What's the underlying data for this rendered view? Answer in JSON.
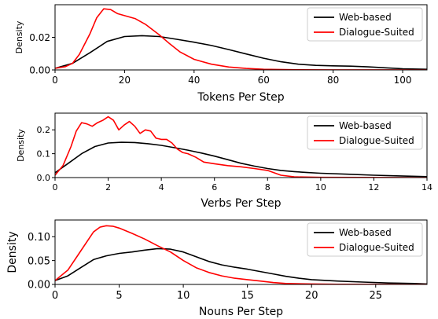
{
  "chart_data": [
    {
      "type": "line",
      "xlabel": "Tokens Per Step",
      "ylabel": "Density",
      "xlim": [
        0,
        107
      ],
      "ylim": [
        0,
        0.04
      ],
      "xticks": [
        0,
        20,
        40,
        60,
        80,
        100
      ],
      "yticks": [
        0,
        0.02
      ],
      "ytick_labels": [
        "0.00",
        "0.02"
      ],
      "legend_position": "top-right",
      "series": [
        {
          "name": "Web-based",
          "color": "#000000",
          "x": [
            0,
            5,
            10,
            15,
            20,
            25,
            30,
            35,
            40,
            45,
            50,
            55,
            60,
            65,
            70,
            75,
            80,
            85,
            90,
            95,
            100,
            107
          ],
          "y": [
            0.001,
            0.004,
            0.0105,
            0.0175,
            0.0205,
            0.021,
            0.0205,
            0.0188,
            0.017,
            0.015,
            0.0125,
            0.0098,
            0.0072,
            0.005,
            0.0035,
            0.0028,
            0.0025,
            0.0023,
            0.0019,
            0.0013,
            0.0007,
            0.0004
          ]
        },
        {
          "name": "Dialogue-Suited",
          "color": "#ff0000",
          "x": [
            0,
            3,
            5,
            7,
            10,
            12,
            14,
            16,
            18,
            20,
            23,
            26,
            30,
            33,
            36,
            40,
            45,
            50,
            55,
            60,
            70,
            80,
            107
          ],
          "y": [
            0.001,
            0.002,
            0.004,
            0.0095,
            0.022,
            0.032,
            0.0375,
            0.037,
            0.0345,
            0.0333,
            0.0315,
            0.028,
            0.0215,
            0.016,
            0.011,
            0.0065,
            0.0035,
            0.0018,
            0.0009,
            0.0004,
            0.0001,
            5e-05,
            0
          ]
        }
      ]
    },
    {
      "type": "line",
      "xlabel": "Verbs Per Step",
      "ylabel": "Density",
      "xlim": [
        0,
        14
      ],
      "ylim": [
        0,
        0.27
      ],
      "xticks": [
        0,
        2,
        4,
        6,
        8,
        10,
        12,
        14
      ],
      "yticks": [
        0,
        0.1,
        0.2
      ],
      "ytick_labels": [
        "0.0",
        "0.1",
        "0.2"
      ],
      "legend_position": "top-right",
      "series": [
        {
          "name": "Web-based",
          "color": "#000000",
          "x": [
            0,
            0.5,
            1,
            1.5,
            2,
            2.5,
            3,
            3.5,
            4,
            4.5,
            5,
            5.5,
            6,
            6.5,
            7,
            7.5,
            8,
            8.5,
            9,
            9.5,
            10,
            11,
            12,
            13,
            14
          ],
          "y": [
            0.02,
            0.06,
            0.1,
            0.13,
            0.145,
            0.148,
            0.147,
            0.142,
            0.135,
            0.125,
            0.115,
            0.103,
            0.09,
            0.075,
            0.06,
            0.048,
            0.038,
            0.03,
            0.025,
            0.021,
            0.018,
            0.014,
            0.01,
            0.007,
            0.004
          ]
        },
        {
          "name": "Dialogue-Suited",
          "color": "#ff0000",
          "x": [
            0,
            0.3,
            0.6,
            0.8,
            1.0,
            1.2,
            1.4,
            1.6,
            1.8,
            2.0,
            2.2,
            2.4,
            2.6,
            2.8,
            3.0,
            3.2,
            3.4,
            3.6,
            3.8,
            4.0,
            4.2,
            4.4,
            4.6,
            4.8,
            5.0,
            5.3,
            5.6,
            6.0,
            6.5,
            7.0,
            7.5,
            8.0,
            8.5,
            9.0,
            10,
            14
          ],
          "y": [
            0.01,
            0.05,
            0.13,
            0.195,
            0.23,
            0.225,
            0.215,
            0.23,
            0.24,
            0.255,
            0.24,
            0.2,
            0.22,
            0.235,
            0.215,
            0.185,
            0.2,
            0.195,
            0.165,
            0.16,
            0.16,
            0.145,
            0.12,
            0.105,
            0.1,
            0.085,
            0.065,
            0.058,
            0.05,
            0.045,
            0.038,
            0.03,
            0.01,
            0.003,
            0.001,
            0
          ]
        }
      ]
    },
    {
      "type": "line",
      "xlabel": "Nouns Per Step",
      "ylabel": "Density",
      "xlim": [
        0,
        29
      ],
      "ylim": [
        0,
        0.135
      ],
      "xticks": [
        0,
        5,
        10,
        15,
        20,
        25
      ],
      "yticks": [
        0,
        0.05,
        0.1
      ],
      "ytick_labels": [
        "0.00",
        "0.05",
        "0.10"
      ],
      "legend_position": "top-right",
      "series": [
        {
          "name": "Web-based",
          "color": "#000000",
          "x": [
            0,
            1,
            2,
            3,
            4,
            5,
            6,
            7,
            8,
            9,
            10,
            11,
            12,
            13,
            14,
            15,
            16,
            17,
            18,
            19,
            20,
            22,
            24,
            26,
            28,
            29
          ],
          "y": [
            0.008,
            0.018,
            0.035,
            0.052,
            0.06,
            0.065,
            0.068,
            0.072,
            0.075,
            0.074,
            0.068,
            0.058,
            0.048,
            0.041,
            0.036,
            0.032,
            0.027,
            0.022,
            0.017,
            0.013,
            0.01,
            0.007,
            0.005,
            0.003,
            0.002,
            0.001
          ]
        },
        {
          "name": "Dialogue-Suited",
          "color": "#ff0000",
          "x": [
            0,
            1,
            2,
            3,
            3.5,
            4,
            4.5,
            5,
            6,
            7,
            8,
            9,
            10,
            11,
            12,
            13,
            14,
            15,
            16,
            17,
            18,
            20,
            22,
            29
          ],
          "y": [
            0.008,
            0.03,
            0.07,
            0.11,
            0.12,
            0.123,
            0.122,
            0.118,
            0.107,
            0.095,
            0.081,
            0.068,
            0.05,
            0.035,
            0.025,
            0.018,
            0.013,
            0.01,
            0.007,
            0.004,
            0.002,
            0.001,
            0.0003,
            0
          ]
        }
      ]
    }
  ]
}
